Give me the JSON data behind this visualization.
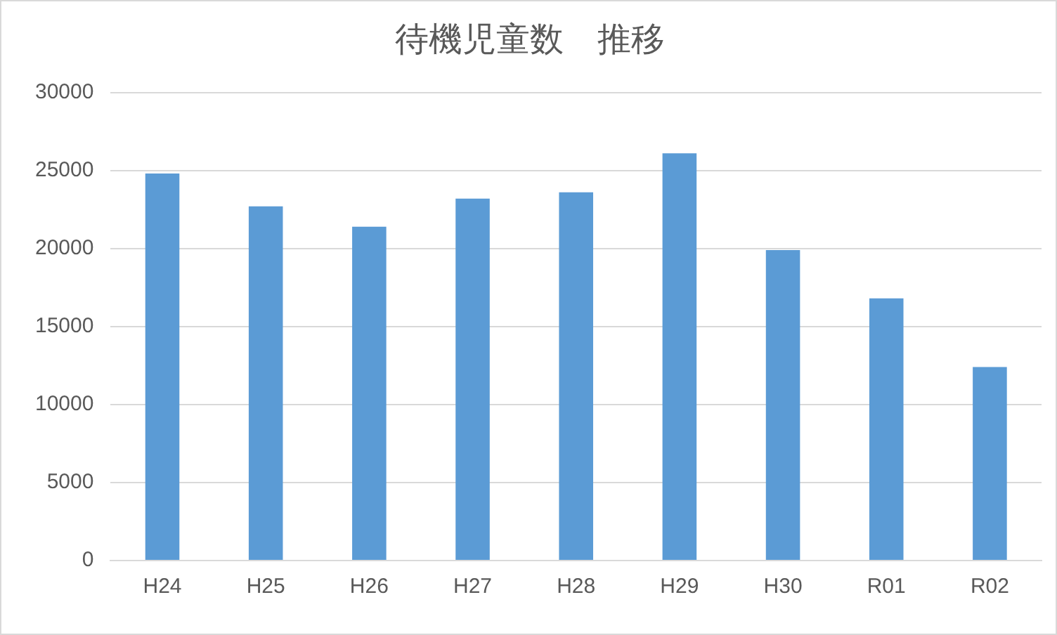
{
  "chart_data": {
    "type": "bar",
    "title": "待機児童数　推移",
    "categories": [
      "H24",
      "H25",
      "H26",
      "H27",
      "H28",
      "H29",
      "H30",
      "R01",
      "R02"
    ],
    "values": [
      24800,
      22700,
      21400,
      23200,
      23600,
      26100,
      19900,
      16800,
      12400
    ],
    "color": "#5b9bd5",
    "ylim": [
      0,
      30000
    ],
    "yticks": [
      0,
      5000,
      10000,
      15000,
      20000,
      25000,
      30000
    ],
    "grid": "y",
    "legend": false
  }
}
